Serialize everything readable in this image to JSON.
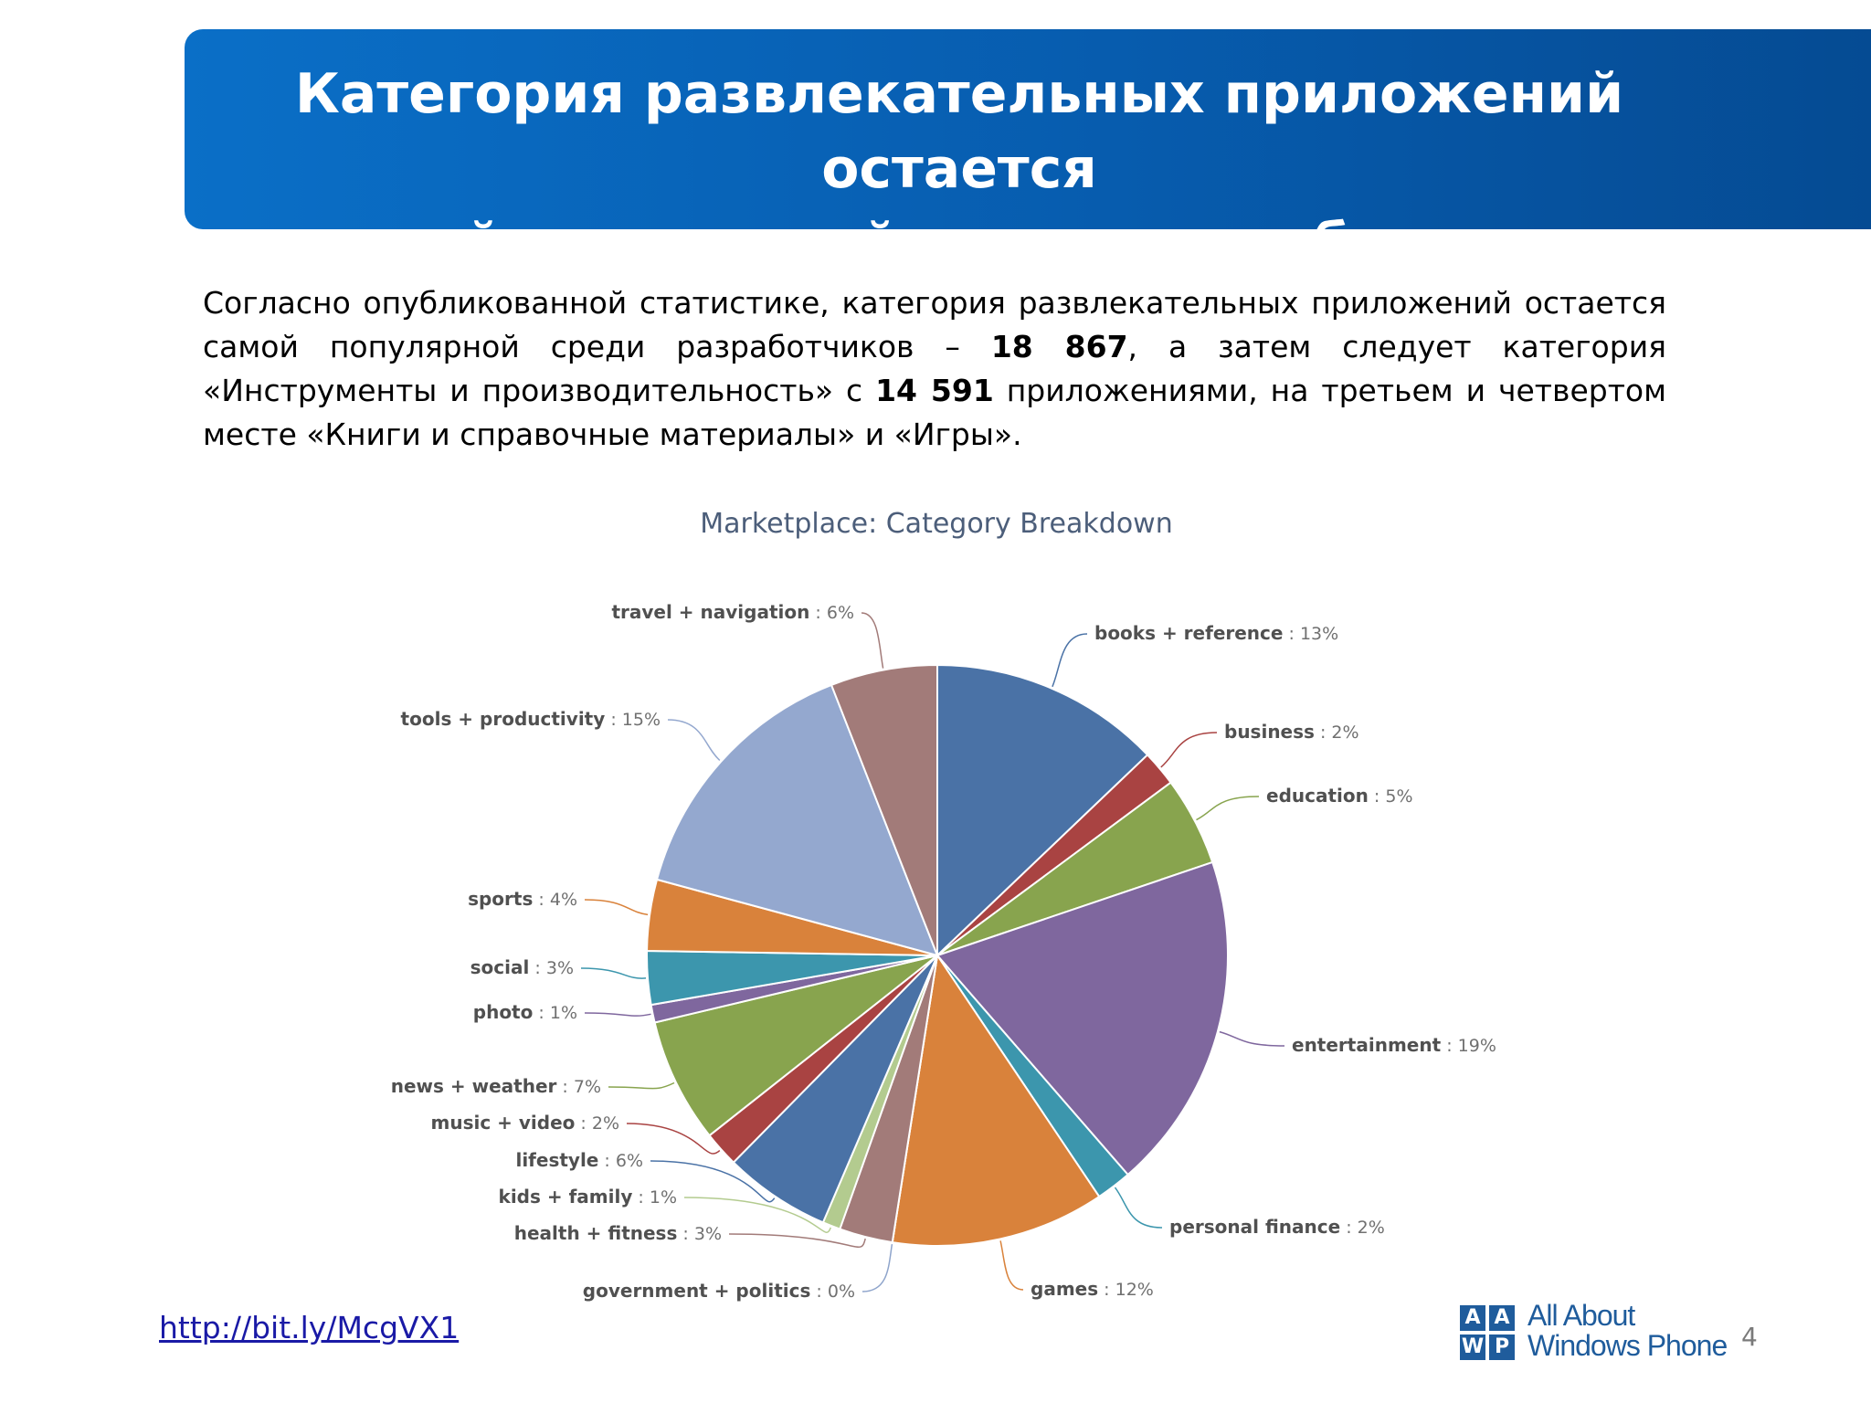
{
  "slide": {
    "title_line1": "Категория развлекательных приложений остается",
    "title_line2": "самой популярной среди разработчиков",
    "intro": {
      "part1": "Согласно опубликованной статистике, категория развлекательных приложений остается самой популярной среди разработчиков – ",
      "bold1": "18 867",
      "part2": ", а затем следует категория «Инструменты и производительность» с ",
      "bold2": "14 591",
      "part3": " приложениями, на третьем и четвертом месте «Книги и справочные материалы» и «Игры»."
    },
    "link": "http://bit.ly/McgVX1",
    "page_number": "4",
    "logo": {
      "letters": [
        "A",
        "A",
        "W",
        "P"
      ],
      "line1": "All About",
      "line2": "Windows Phone",
      "color": "#1f5c9c"
    },
    "header_color": "#0a6fc7"
  },
  "chart_data": {
    "type": "pie",
    "title": "Marketplace: Category Breakdown",
    "unit": "%",
    "slices": [
      {
        "name": "books + reference",
        "value": 13,
        "color": "#4a72a6"
      },
      {
        "name": "business",
        "value": 2,
        "color": "#a94342"
      },
      {
        "name": "education",
        "value": 5,
        "color": "#88a44e"
      },
      {
        "name": "entertainment",
        "value": 19,
        "color": "#7f679e"
      },
      {
        "name": "personal finance",
        "value": 2,
        "color": "#3c96ad"
      },
      {
        "name": "games",
        "value": 12,
        "color": "#d9823b"
      },
      {
        "name": "government + politics",
        "value": 0,
        "color": "#8ea4cb"
      },
      {
        "name": "health + fitness",
        "value": 3,
        "color": "#a27b79"
      },
      {
        "name": "kids + family",
        "value": 1,
        "color": "#b3cb8f"
      },
      {
        "name": "lifestyle",
        "value": 6,
        "color": "#4a72a6"
      },
      {
        "name": "music + video",
        "value": 2,
        "color": "#a94342"
      },
      {
        "name": "news + weather",
        "value": 7,
        "color": "#88a44e"
      },
      {
        "name": "photo",
        "value": 1,
        "color": "#7f679e"
      },
      {
        "name": "social",
        "value": 3,
        "color": "#3c96ad"
      },
      {
        "name": "sports",
        "value": 4,
        "color": "#d9823b"
      },
      {
        "name": "tools + productivity",
        "value": 15,
        "color": "#94a8cf"
      },
      {
        "name": "travel + navigation",
        "value": 6,
        "color": "#a27b79"
      }
    ]
  }
}
